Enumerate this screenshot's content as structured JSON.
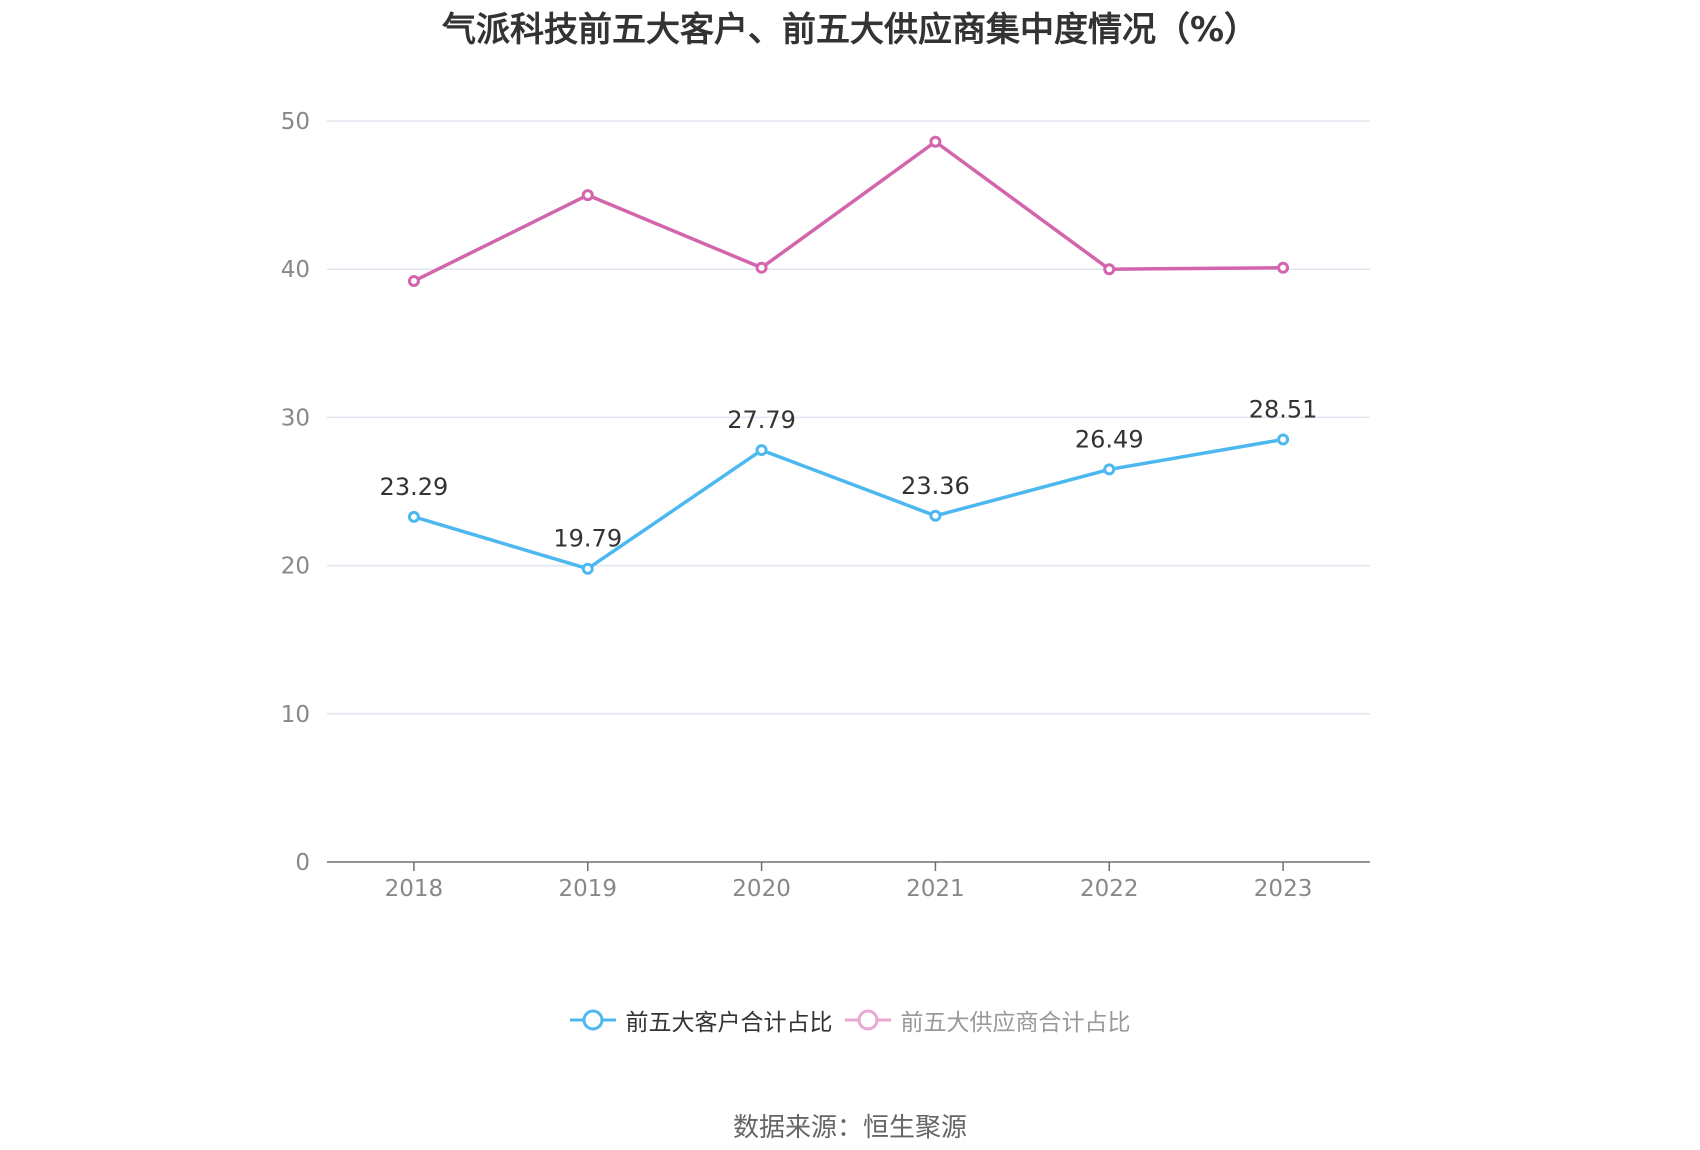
{
  "chart_data": {
    "type": "line",
    "title": "气派科技前五大客户、前五大供应商集中度情况（%）",
    "categories": [
      "2018",
      "2019",
      "2020",
      "2021",
      "2022",
      "2023"
    ],
    "ylim": [
      0,
      50
    ],
    "yticks": [
      0,
      10,
      20,
      30,
      40,
      50
    ],
    "grid": true,
    "legend_position": "bottom",
    "series": [
      {
        "name": "前五大客户合计占比",
        "values": [
          23.29,
          19.79,
          27.79,
          23.36,
          26.49,
          28.51
        ],
        "color": "#4db8ef",
        "data_labels": true
      },
      {
        "name": "前五大供应商合计占比",
        "values": [
          39.2,
          45.0,
          40.1,
          48.6,
          40.0,
          40.1
        ],
        "color": "#d265ac",
        "legend_color": "#e9a8d2",
        "data_labels": false
      }
    ]
  },
  "source": "数据来源：恒生聚源"
}
